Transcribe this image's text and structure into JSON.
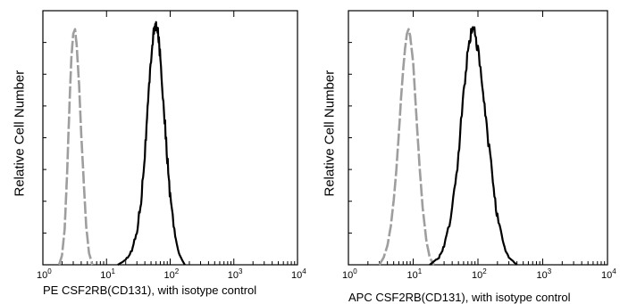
{
  "chart_data": [
    {
      "type": "line",
      "title": "",
      "ylabel": "Relative Cell Number",
      "xlabel": "PE  CSF2RB(CD131),  with isotype control",
      "xscale": "log",
      "xlim": [
        1,
        10000
      ],
      "x_ticks": [
        "10^0",
        "10^1",
        "10^2",
        "10^3",
        "10^4"
      ],
      "grid": false,
      "series": [
        {
          "role": "isotype control",
          "color": "#9e9e9e",
          "dash": "dashed",
          "x": [
            1.8,
            2.0,
            2.2,
            2.4,
            2.6,
            2.8,
            3.0,
            3.2,
            3.4,
            3.7,
            4.0,
            4.4,
            4.8,
            5.3,
            6.0
          ],
          "y": [
            0.0,
            0.04,
            0.15,
            0.38,
            0.65,
            0.87,
            0.97,
            0.99,
            0.92,
            0.76,
            0.55,
            0.34,
            0.16,
            0.05,
            0.0
          ]
        },
        {
          "role": "CSF2RB(CD131)",
          "color": "#000000",
          "dash": "solid",
          "x": [
            15,
            20,
            25,
            30,
            35,
            40,
            45,
            50,
            55,
            60,
            65,
            70,
            80,
            90,
            100,
            120,
            140,
            170
          ],
          "y": [
            0.0,
            0.02,
            0.06,
            0.14,
            0.28,
            0.47,
            0.68,
            0.87,
            0.98,
            1.0,
            0.97,
            0.87,
            0.65,
            0.45,
            0.28,
            0.12,
            0.04,
            0.0
          ]
        }
      ]
    },
    {
      "type": "line",
      "title": "",
      "ylabel": "Relative Cell Number",
      "xlabel": "APC CSF2RB(CD131),  with isotype control",
      "xscale": "log",
      "xlim": [
        1,
        10000
      ],
      "x_ticks": [
        "10^0",
        "10^1",
        "10^2",
        "10^3",
        "10^4"
      ],
      "grid": false,
      "series": [
        {
          "role": "isotype control",
          "color": "#9e9e9e",
          "dash": "dashed",
          "x": [
            3.0,
            3.5,
            4.0,
            4.5,
            5.0,
            5.5,
            6.0,
            6.5,
            7.0,
            7.5,
            8.0,
            8.5,
            9.0,
            10.0,
            11.0,
            12.5,
            14.0,
            16.0,
            18.0,
            21.0
          ],
          "y": [
            0.0,
            0.03,
            0.08,
            0.16,
            0.27,
            0.4,
            0.55,
            0.7,
            0.82,
            0.91,
            0.97,
            0.99,
            0.96,
            0.85,
            0.66,
            0.42,
            0.24,
            0.1,
            0.03,
            0.0
          ]
        },
        {
          "role": "CSF2RB(CD131)",
          "color": "#000000",
          "dash": "solid",
          "x": [
            18,
            25,
            30,
            40,
            50,
            60,
            70,
            80,
            90,
            100,
            120,
            140,
            170,
            200,
            250,
            300,
            400
          ],
          "y": [
            0.0,
            0.03,
            0.08,
            0.22,
            0.46,
            0.72,
            0.9,
            0.99,
            0.98,
            0.9,
            0.72,
            0.55,
            0.36,
            0.2,
            0.08,
            0.03,
            0.0
          ]
        }
      ]
    }
  ]
}
